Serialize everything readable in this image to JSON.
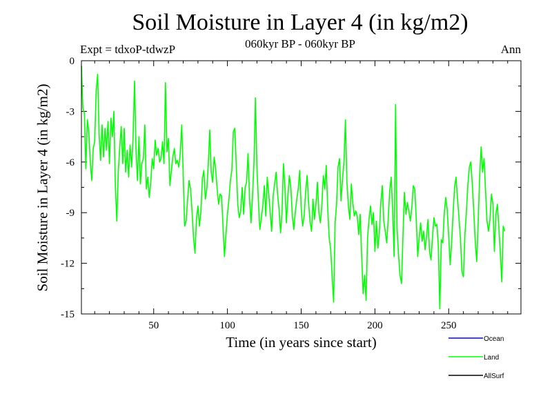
{
  "chart_data": {
    "type": "line",
    "title": "Soil Moisture in Layer 4 (in kg/m2)",
    "subtitle": "060kyr BP - 060kyr BP",
    "experiment_label": "Expt = tdxoP-tdwzP",
    "season_label": "Ann",
    "xlabel": "Time (in years since start)",
    "ylabel": "Soil Moisture in Layer 4 (in kg/m2)",
    "xlim": [
      1,
      299
    ],
    "ylim": [
      -15,
      0
    ],
    "x_ticks": [
      50,
      100,
      150,
      200,
      250
    ],
    "y_ticks": [
      0,
      -3,
      -6,
      -9,
      -12,
      -15
    ],
    "grid": false,
    "legend_position": "bottom-right",
    "legend": [
      {
        "name": "Ocean",
        "color": "#0000ff"
      },
      {
        "name": "Land",
        "color": "#00ff00"
      },
      {
        "name": "AllSurf",
        "color": "#000000"
      }
    ],
    "series": [
      {
        "name": "Land",
        "color": "#00ff00",
        "x_start": 1,
        "x_step": 1,
        "values": [
          -0.3,
          -2.8,
          -3.1,
          -6.4,
          -3.5,
          -4.2,
          -6.0,
          -7.1,
          -5.2,
          -4.8,
          -1.8,
          -0.8,
          -4.4,
          -5.9,
          -3.8,
          -5.7,
          -4.0,
          -5.3,
          -3.6,
          -6.1,
          -3.4,
          -4.5,
          -3.0,
          -7.4,
          -9.5,
          -6.6,
          -5.1,
          -3.9,
          -6.1,
          -4.0,
          -6.6,
          -5.3,
          -6.9,
          -5.0,
          -6.3,
          -4.6,
          -1.2,
          -5.2,
          -7.1,
          -4.5,
          -7.3,
          -6.1,
          -5.8,
          -3.8,
          -7.6,
          -6.9,
          -8.1,
          -7.2,
          -5.8,
          -6.4,
          -4.7,
          -5.6,
          -5.2,
          -6.0,
          -5.8,
          -4.8,
          -6.1,
          -1.3,
          -5.4,
          -4.6,
          -7.4,
          -6.5,
          -5.7,
          -5.2,
          -6.1,
          -5.9,
          -6.3,
          -5.5,
          -3.8,
          -6.7,
          -9.8,
          -9.5,
          -8.2,
          -7.1,
          -7.6,
          -8.9,
          -10.5,
          -11.4,
          -9.4,
          -8.6,
          -9.8,
          -9.0,
          -7.0,
          -6.5,
          -8.2,
          -7.6,
          -6.2,
          -4.1,
          -6.6,
          -7.2,
          -5.7,
          -6.4,
          -7.6,
          -8.5,
          -7.9,
          -8.0,
          -9.8,
          -11.6,
          -10.3,
          -9.1,
          -8.2,
          -7.1,
          -6.5,
          -4.2,
          -4.0,
          -6.2,
          -8.5,
          -9.3,
          -8.9,
          -7.5,
          -9.1,
          -7.5,
          -7.2,
          -5.5,
          -8.2,
          -9.6,
          -8.0,
          -6.0,
          -2.2,
          -6.4,
          -8.3,
          -10.0,
          -9.3,
          -8.6,
          -7.4,
          -9.2,
          -6.9,
          -7.9,
          -9.0,
          -10.1,
          -8.0,
          -7.3,
          -6.6,
          -7.9,
          -8.8,
          -10.2,
          -9.0,
          -6.1,
          -7.5,
          -9.6,
          -8.0,
          -6.8,
          -7.5,
          -9.2,
          -10.0,
          -9.0,
          -8.2,
          -7.6,
          -6.5,
          -8.7,
          -9.8,
          -9.2,
          -7.8,
          -6.8,
          -8.4,
          -9.5,
          -10.1,
          -8.2,
          -9.4,
          -8.5,
          -7.2,
          -9.0,
          -9.6,
          -8.6,
          -6.8,
          -7.6,
          -6.2,
          -8.8,
          -10.5,
          -11.2,
          -12.8,
          -14.3,
          -9.6,
          -8.5,
          -6.3,
          -5.8,
          -8.3,
          -7.0,
          -6.0,
          -3.5,
          -7.2,
          -8.6,
          -9.4,
          -7.3,
          -8.4,
          -9.2,
          -8.9,
          -9.2,
          -10.3,
          -9.1,
          -11.5,
          -13.8,
          -12.7,
          -14.2,
          -10.5,
          -9.4,
          -8.6,
          -9.7,
          -9.0,
          -11.3,
          -9.5,
          -11.1,
          -10.2,
          -8.4,
          -7.4,
          -9.5,
          -10.1,
          -10.8,
          -9.4,
          -7.7,
          -6.9,
          -8.8,
          -11.6,
          -2.6,
          -9.9,
          -11.5,
          -12.7,
          -13.2,
          -10.4,
          -7.8,
          -9.1,
          -8.4,
          -8.9,
          -9.5,
          -8.7,
          -7.4,
          -7.6,
          -9.3,
          -11.6,
          -10.5,
          -9.6,
          -10.7,
          -10.1,
          -11.2,
          -10.4,
          -9.4,
          -11.3,
          -11.8,
          -10.5,
          -9.3,
          -9.8,
          -9.7,
          -11.0,
          -14.7,
          -10.6,
          -10.8,
          -9.1,
          -8.1,
          -8.8,
          -10.4,
          -12.1,
          -10.8,
          -9.0,
          -7.5,
          -6.9,
          -8.2,
          -9.3,
          -10.6,
          -12.5,
          -12.8,
          -10.3,
          -9.0,
          -7.4,
          -6.3,
          -6.0,
          -7.3,
          -8.9,
          -10.7,
          -11.9,
          -9.6,
          -6.9,
          -5.1,
          -6.6,
          -5.8,
          -7.7,
          -9.5,
          -10.1,
          -9.4,
          -7.9,
          -8.5,
          -11.3,
          -9.1,
          -8.5,
          -9.8,
          -11.4,
          -13.1,
          -9.8,
          -10.1
        ]
      }
    ]
  }
}
